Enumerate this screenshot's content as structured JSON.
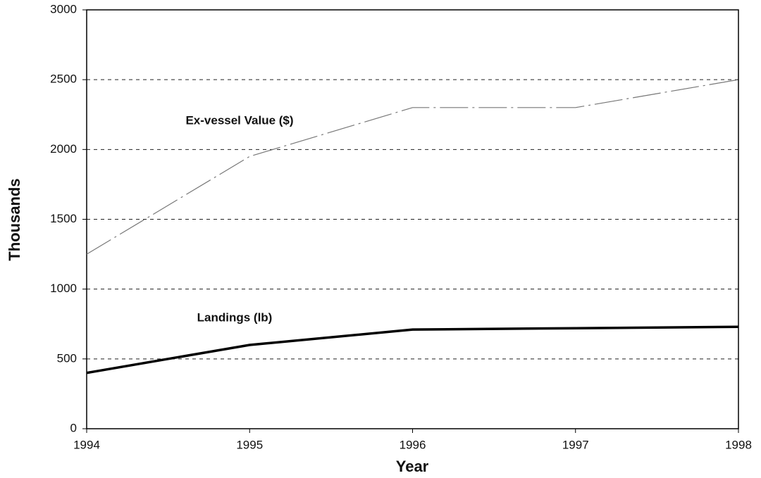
{
  "chart_data": {
    "type": "line",
    "x_label": "Year",
    "y_label": "Thousands",
    "x": [
      1994,
      1995,
      1996,
      1997,
      1998
    ],
    "xlim": [
      1994,
      1998
    ],
    "xticks": [
      1994,
      1995,
      1996,
      1997,
      1998
    ],
    "ylim": [
      0,
      3000
    ],
    "yticks": [
      0,
      500,
      1000,
      1500,
      2000,
      2500,
      3000
    ],
    "grid": true,
    "series": [
      {
        "name": "Ex-vessel Value ($)",
        "color": "#777777",
        "values": [
          1250,
          1950,
          2300,
          2300,
          2500
        ]
      },
      {
        "name": "Landings (lb)",
        "color": "#000000",
        "values": [
          400,
          600,
          710,
          720,
          730
        ]
      }
    ]
  }
}
